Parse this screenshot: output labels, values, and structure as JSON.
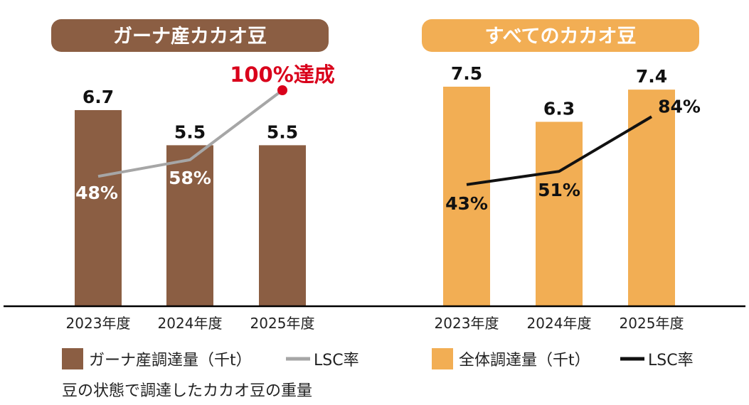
{
  "colors": {
    "ghana": "#8b5e43",
    "all": "#f2ae54",
    "ghana_line": "#a6a6a6",
    "all_line": "#111111",
    "annotation": "#d9001b",
    "axis": "#000000"
  },
  "chart_data": [
    {
      "type": "bar",
      "title": "ガーナ産カカオ豆",
      "categories": [
        "2023年度",
        "2024年度",
        "2025年度"
      ],
      "series": [
        {
          "name": "ガーナ産調達量（千t）",
          "type": "bar",
          "values": [
            6.7,
            5.5,
            5.5
          ],
          "labels": [
            "6.7",
            "5.5",
            "5.5"
          ]
        },
        {
          "name": "LSC率",
          "type": "line",
          "values": [
            48,
            58,
            100
          ],
          "labels": [
            "48%",
            "58%",
            ""
          ]
        }
      ],
      "annotation": "100%達成",
      "ylim": [
        0,
        7.5
      ],
      "pct_range": [
        0,
        100
      ]
    },
    {
      "type": "bar",
      "title": "すべてのカカオ豆",
      "categories": [
        "2023年度",
        "2024年度",
        "2025年度"
      ],
      "series": [
        {
          "name": "全体調達量（千t）",
          "type": "bar",
          "values": [
            7.5,
            6.3,
            7.4
          ],
          "labels": [
            "7.5",
            "6.3",
            "7.4"
          ]
        },
        {
          "name": "LSC率",
          "type": "line",
          "values": [
            43,
            51,
            84
          ],
          "labels": [
            "43%",
            "51%",
            "84%"
          ]
        }
      ],
      "ylim": [
        0,
        7.5
      ],
      "pct_range": [
        0,
        100
      ]
    }
  ],
  "note": "豆の状態で調達したカカオ豆の重量"
}
